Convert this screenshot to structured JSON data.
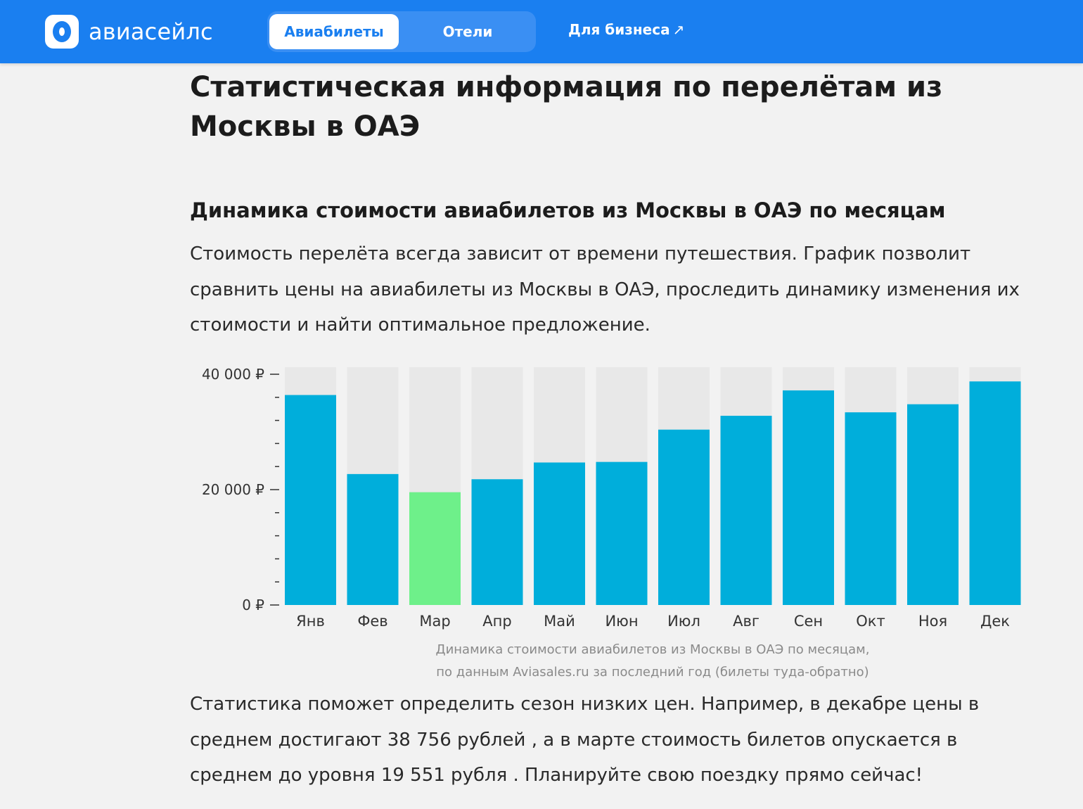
{
  "header": {
    "logo_text": "авиасейлс",
    "tabs": [
      {
        "label": "Авиабилеты",
        "active": true
      },
      {
        "label": "Отели",
        "active": false
      }
    ],
    "business_link": "Для бизнеса",
    "business_arrow": "↗",
    "brand_color": "#1a7ff0"
  },
  "page": {
    "title": "Статистическая информация по перелётам из Москвы в ОАЭ",
    "section_title": "Динамика стоимости авиабилетов из Москвы в ОАЭ по месяцам",
    "intro": "Стоимость перелёта всегда зависит от времени путешествия. График позволит сравнить цены на авиабилеты из Москвы в ОАЭ, проследить динамику изменения их стоимости и найти оптимальное предложение.",
    "caption_line1": "Динамика стоимости авиабилетов из Москвы в ОАЭ по месяцам,",
    "caption_line2": "по данным Aviasales.ru за последний год (билеты туда-обратно)",
    "summary": "Статистика поможет определить сезон низких цен. Например, в декабре цены в среднем достигают 38 756 рублей , а в марте стоимость билетов опускается в среднем до уровня 19 551 рубля . Планируйте свою поездку прямо сейчас!"
  },
  "chart_data": {
    "type": "bar",
    "categories": [
      "Янв",
      "Фев",
      "Мар",
      "Апр",
      "Май",
      "Июн",
      "Июл",
      "Авг",
      "Сен",
      "Окт",
      "Ноя",
      "Дек"
    ],
    "values": [
      36400,
      22700,
      19551,
      21800,
      24700,
      24800,
      30400,
      32800,
      37200,
      33400,
      34800,
      38756
    ],
    "ylim": [
      0,
      40000
    ],
    "y_tick_labels": [
      "40 000 ₽",
      "20 000 ₽",
      "0 ₽"
    ],
    "y_ticks": [
      40000,
      20000,
      0
    ],
    "highlight_index": 2,
    "bar_color": "#00aedb",
    "highlight_color": "#6ef08a",
    "track_color": "#e8e8e8",
    "grid": false
  }
}
